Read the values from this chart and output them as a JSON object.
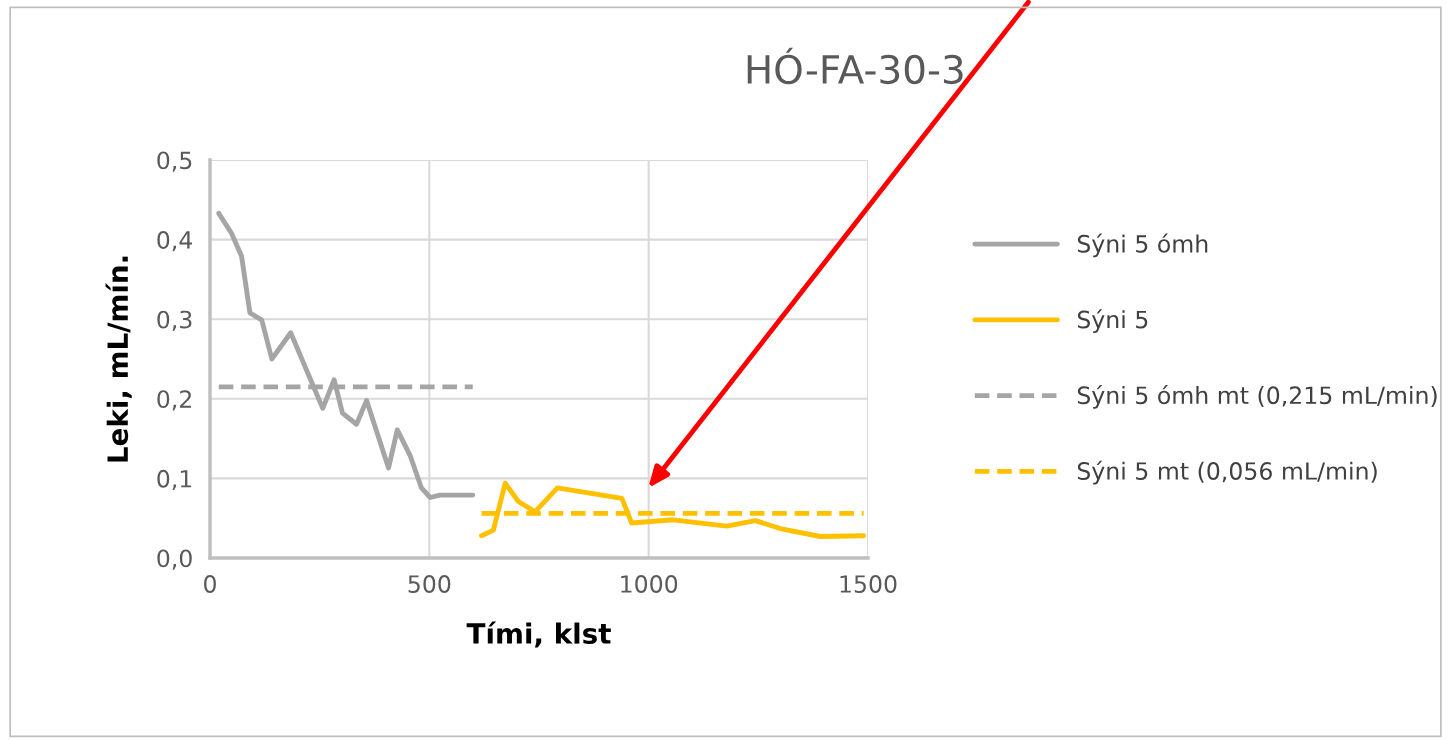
{
  "chart_data": {
    "type": "line",
    "title": "HÓ-FA-30-3",
    "xlabel": "Tími, klst",
    "ylabel": "Leki, mL/mín.",
    "xlim": [
      0,
      1500
    ],
    "xticks": [
      0,
      500,
      1000,
      1500
    ],
    "ylim": [
      0,
      0.5
    ],
    "yticks": [
      {
        "value": 0,
        "label": "0,0"
      },
      {
        "value": 0.1,
        "label": "0,1"
      },
      {
        "value": 0.2,
        "label": "0,2"
      },
      {
        "value": 0.3,
        "label": "0,3"
      },
      {
        "value": 0.4,
        "label": "0,4"
      },
      {
        "value": 0.5,
        "label": "0,5"
      }
    ],
    "grid": true,
    "legend": "right",
    "marker": "none",
    "series": [
      {
        "name": "Sýni 5 ómh",
        "color": "#a5a5a5",
        "line_style": "solid",
        "x": [
          20,
          49,
          72,
          91,
          118,
          141,
          184,
          257,
          283,
          302,
          334,
          357,
          407,
          427,
          456,
          482,
          502,
          524,
          599
        ],
        "values": [
          0.433,
          0.408,
          0.379,
          0.308,
          0.299,
          0.25,
          0.283,
          0.188,
          0.224,
          0.182,
          0.168,
          0.198,
          0.113,
          0.161,
          0.129,
          0.088,
          0.076,
          0.079,
          0.079
        ]
      },
      {
        "name": "Sýni 5",
        "color": "#ffc000",
        "line_style": "solid",
        "x": [
          619,
          646,
          673,
          703,
          741,
          792,
          939,
          961,
          1056,
          1178,
          1243,
          1300,
          1391,
          1490
        ],
        "values": [
          0.028,
          0.035,
          0.094,
          0.071,
          0.058,
          0.088,
          0.075,
          0.044,
          0.048,
          0.04,
          0.047,
          0.037,
          0.027,
          0.028
        ]
      },
      {
        "name": "Sýni 5 ómh mt (0,215 mL/min)",
        "color": "#a5a5a5",
        "line_style": "dashed",
        "x": [
          20,
          599
        ],
        "values": [
          0.215,
          0.215
        ]
      },
      {
        "name": "Sýni 5 mt (0,056 mL/min)",
        "color": "#ffc000",
        "line_style": "dashed",
        "x": [
          619,
          1490
        ],
        "values": [
          0.056,
          0.056
        ]
      }
    ]
  }
}
